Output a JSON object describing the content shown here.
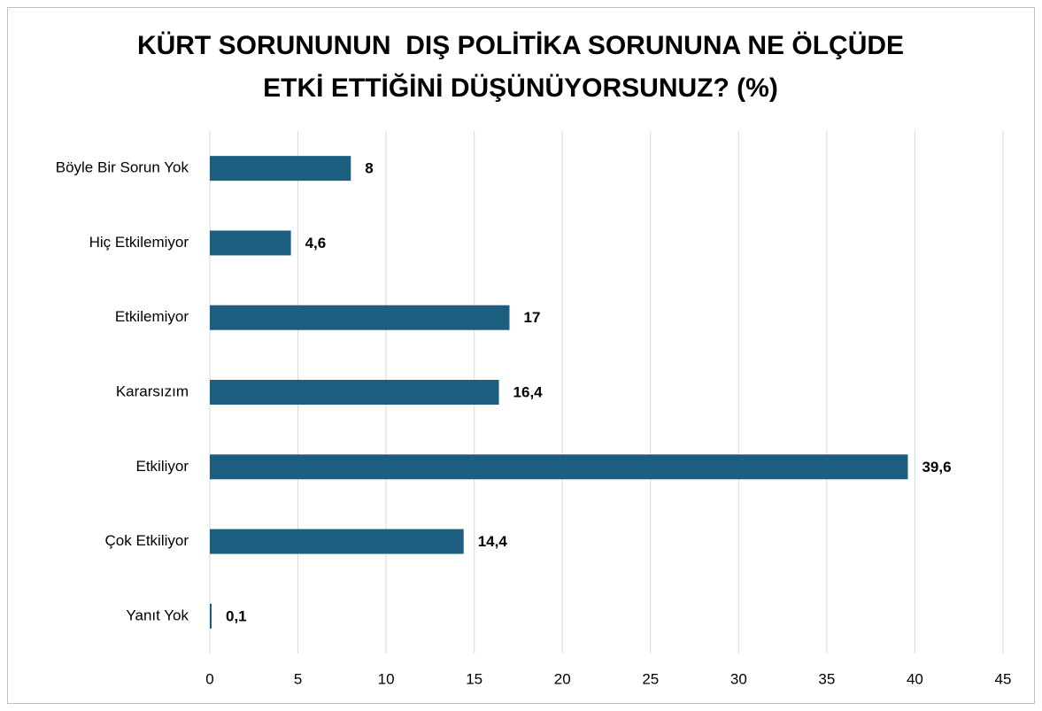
{
  "chart_data": {
    "type": "bar",
    "orientation": "horizontal",
    "title": [
      "KÜRT SORUNUNUN  DIŞ POLİTİKA SORUNUNA NE ÖLÇÜDE",
      "ETKİ ETTİĞİNİ DÜŞÜNÜYORSUNUZ? (%)"
    ],
    "categories": [
      "Böyle Bir Sorun Yok",
      "Hiç Etkilemiyor",
      "Etkilemiyor",
      "Kararsızım",
      "Etkiliyor",
      "Çok Etkiliyor",
      "Yanıt Yok"
    ],
    "values": [
      8,
      4.6,
      17,
      16.4,
      39.6,
      14.4,
      0.1
    ],
    "value_labels": [
      "8",
      "4,6",
      "17",
      "16,4",
      "39,6",
      "14,4",
      "0,1"
    ],
    "color": "#1b5e80",
    "xlim": [
      0,
      45
    ],
    "xticks": [
      0,
      5,
      10,
      15,
      20,
      25,
      30,
      35,
      40,
      45
    ],
    "grid": true
  }
}
